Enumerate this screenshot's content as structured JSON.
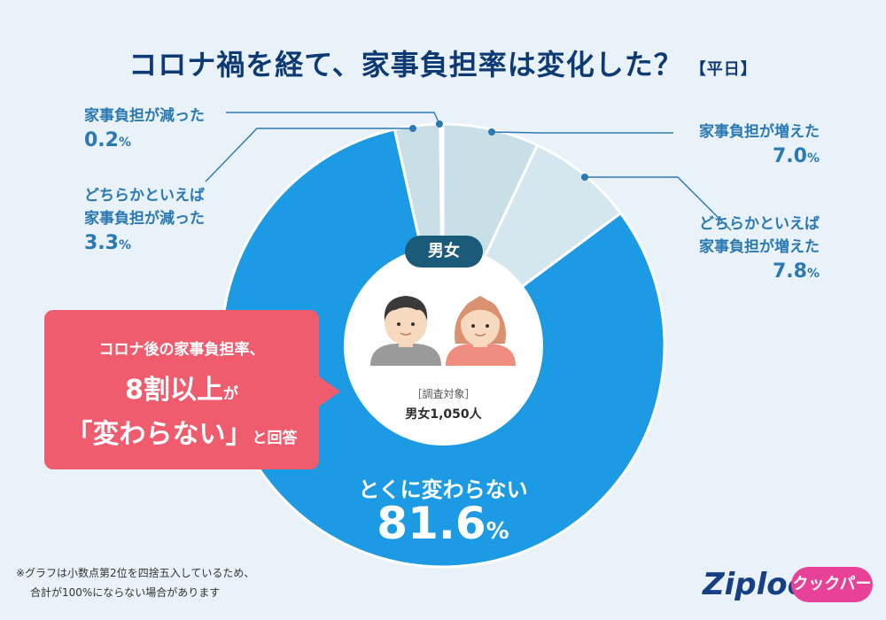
{
  "title": {
    "main": "コロナ禍を経て、家事負担率は変化した？",
    "tag": "【平日】"
  },
  "chart_data": {
    "type": "pie",
    "slices": [
      {
        "name": "家事負担が増えた",
        "value": 7.0,
        "color": "#c9dfe8"
      },
      {
        "name": "どちらかといえば家事負担が増えた",
        "value": 7.8,
        "color": "#d4e6ee"
      },
      {
        "name": "とくに変わらない",
        "value": 81.6,
        "color": "#1d9ae4"
      },
      {
        "name": "どちらかといえば家事負担が減った",
        "value": 3.3,
        "color": "#c9dfe8"
      },
      {
        "name": "家事負担が減った",
        "value": 0.2,
        "color": "#c9dfe8"
      }
    ]
  },
  "labels": {
    "decreased_name": "家事負担が減った",
    "decreased_value": "0.2",
    "somewhat_decreased_name1": "どちらかといえば",
    "somewhat_decreased_name2": "家事負担が減った",
    "somewhat_decreased_value": "3.3",
    "increased_name": "家事負担が増えた",
    "increased_value": "7.0",
    "somewhat_increased_name1": "どちらかといえば",
    "somewhat_increased_name2": "家事負担が増えた",
    "somewhat_increased_value": "7.8",
    "unchanged_name": "とくに変わらない",
    "unchanged_value": "81.6",
    "percent": "%"
  },
  "center": {
    "tag": "男女",
    "survey_label": "［調査対象］",
    "survey_value": "男女1,050人"
  },
  "callout": {
    "line1": "コロナ後の家事負担率、",
    "line2": "8割以上",
    "line2_suffix": "が",
    "line3": "「変わらない」",
    "line3_suffix": "と回答"
  },
  "note": {
    "line1": "※グラフは小数点第2位を四捨五入しているため、",
    "line2": "合計が100%にならない場合があります"
  },
  "brands": {
    "ziploc": "Ziploc",
    "registered": "®",
    "cookpa": "クックパー"
  }
}
